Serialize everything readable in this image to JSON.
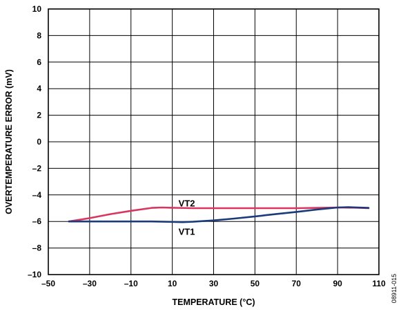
{
  "chart_data": {
    "type": "line",
    "xlabel": "TEMPERATURE (°C)",
    "ylabel": "OVERTEMPERATURE ERROR (mV)",
    "xlim": [
      -50,
      110
    ],
    "ylim": [
      -10,
      10
    ],
    "x_ticks": [
      -50,
      -30,
      -10,
      10,
      30,
      50,
      70,
      90,
      110
    ],
    "y_ticks": [
      -10,
      -8,
      -6,
      -4,
      -2,
      0,
      2,
      4,
      6,
      8,
      10
    ],
    "x_tick_labels": [
      "–50",
      "–30",
      "–10",
      "10",
      "30",
      "50",
      "70",
      "90",
      "110"
    ],
    "y_tick_labels": [
      "–10",
      "–8",
      "–6",
      "–4",
      "–2",
      "0",
      "2",
      "4",
      "6",
      "8",
      "10"
    ],
    "grid": true,
    "series": [
      {
        "name": "VT2",
        "color": "#d9365f",
        "x": [
          -40,
          -30,
          -20,
          -10,
          0,
          5,
          10,
          20,
          30,
          40,
          50,
          60,
          70,
          80,
          90,
          100,
          105
        ],
        "y": [
          -6.0,
          -5.75,
          -5.45,
          -5.2,
          -4.98,
          -4.95,
          -4.97,
          -5.0,
          -5.0,
          -5.0,
          -5.0,
          -5.0,
          -5.0,
          -4.98,
          -4.95,
          -4.97,
          -5.0
        ]
      },
      {
        "name": "VT1",
        "color": "#1a3a7a",
        "x": [
          -40,
          -30,
          -20,
          -10,
          0,
          10,
          15,
          20,
          30,
          40,
          50,
          60,
          70,
          80,
          90,
          95,
          100,
          105
        ],
        "y": [
          -6.0,
          -6.0,
          -6.0,
          -6.0,
          -6.0,
          -6.03,
          -6.05,
          -6.02,
          -5.92,
          -5.78,
          -5.62,
          -5.45,
          -5.28,
          -5.1,
          -4.95,
          -4.92,
          -4.95,
          -4.98
        ]
      }
    ],
    "series_labels": [
      {
        "text": "VT2",
        "x": 17,
        "y": -4.6
      },
      {
        "text": "VT1",
        "x": 17,
        "y": -6.75
      }
    ],
    "figure_id": "08911-015"
  }
}
